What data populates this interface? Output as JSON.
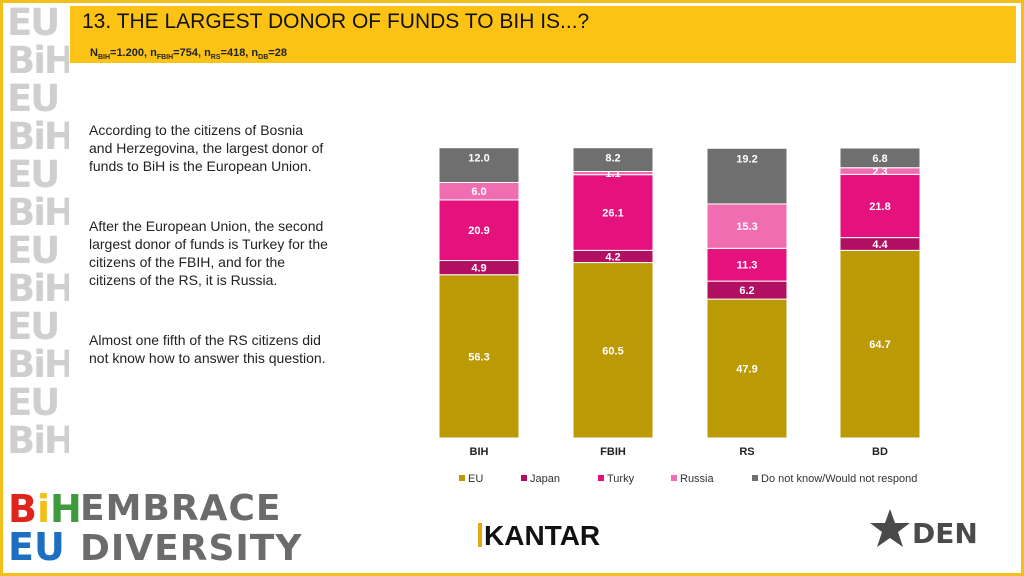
{
  "header": {
    "title": "13. THE LARGEST DONOR OF FUNDS TO BIH IS...?",
    "sample": {
      "N": "N",
      "bih_sub": "BIH",
      "bih_val": "=1.200, ",
      "n1": "n",
      "fbih_sub": "FBIH",
      "fbih_val": "=754, ",
      "n2": "n",
      "rs_sub": "RS",
      "rs_val": "=418, ",
      "n3": "n",
      "db_sub": "DB",
      "db_val": "=28"
    }
  },
  "paragraphs": [
    "According to the citizens of Bosnia and Herzegovina, the largest donor of funds to BiH is the European Union.",
    "After the European Union, the second largest donor of funds is Turkey for the citizens of the FBIH, and for the citizens of the RS, it is Russia.",
    "Almost one fifth of the RS citizens did not know how to answer this question."
  ],
  "chart_data": {
    "type": "bar",
    "stacked": true,
    "categories": [
      "BIH",
      "FBIH",
      "RS",
      "BD"
    ],
    "series": [
      {
        "name": "EU",
        "color": "#bb9a06",
        "values": [
          56.3,
          60.5,
          47.9,
          64.7
        ]
      },
      {
        "name": "Japan",
        "color": "#b00f62",
        "values": [
          4.9,
          4.2,
          6.2,
          4.4
        ]
      },
      {
        "name": "Turky",
        "color": "#e5127d",
        "values": [
          20.9,
          26.1,
          11.3,
          21.8
        ]
      },
      {
        "name": "Russia",
        "color": "#f06db2",
        "values": [
          6.0,
          1.1,
          15.3,
          2.3
        ]
      },
      {
        "name": "Do not know/Would not respond",
        "color": "#6f6f6f",
        "values": [
          12.0,
          8.2,
          19.2,
          6.8
        ]
      }
    ],
    "ylim": [
      0,
      100
    ],
    "legend_position": "bottom",
    "grid": false
  },
  "logos": {
    "bi": "BiH",
    "eu": "EU",
    "embrace_line1": "EMBRACE",
    "embrace_line2": "DIVERSITY",
    "kantar": "KANTAR",
    "den": "DEN"
  },
  "colors": {
    "accent": "#fcc315"
  }
}
